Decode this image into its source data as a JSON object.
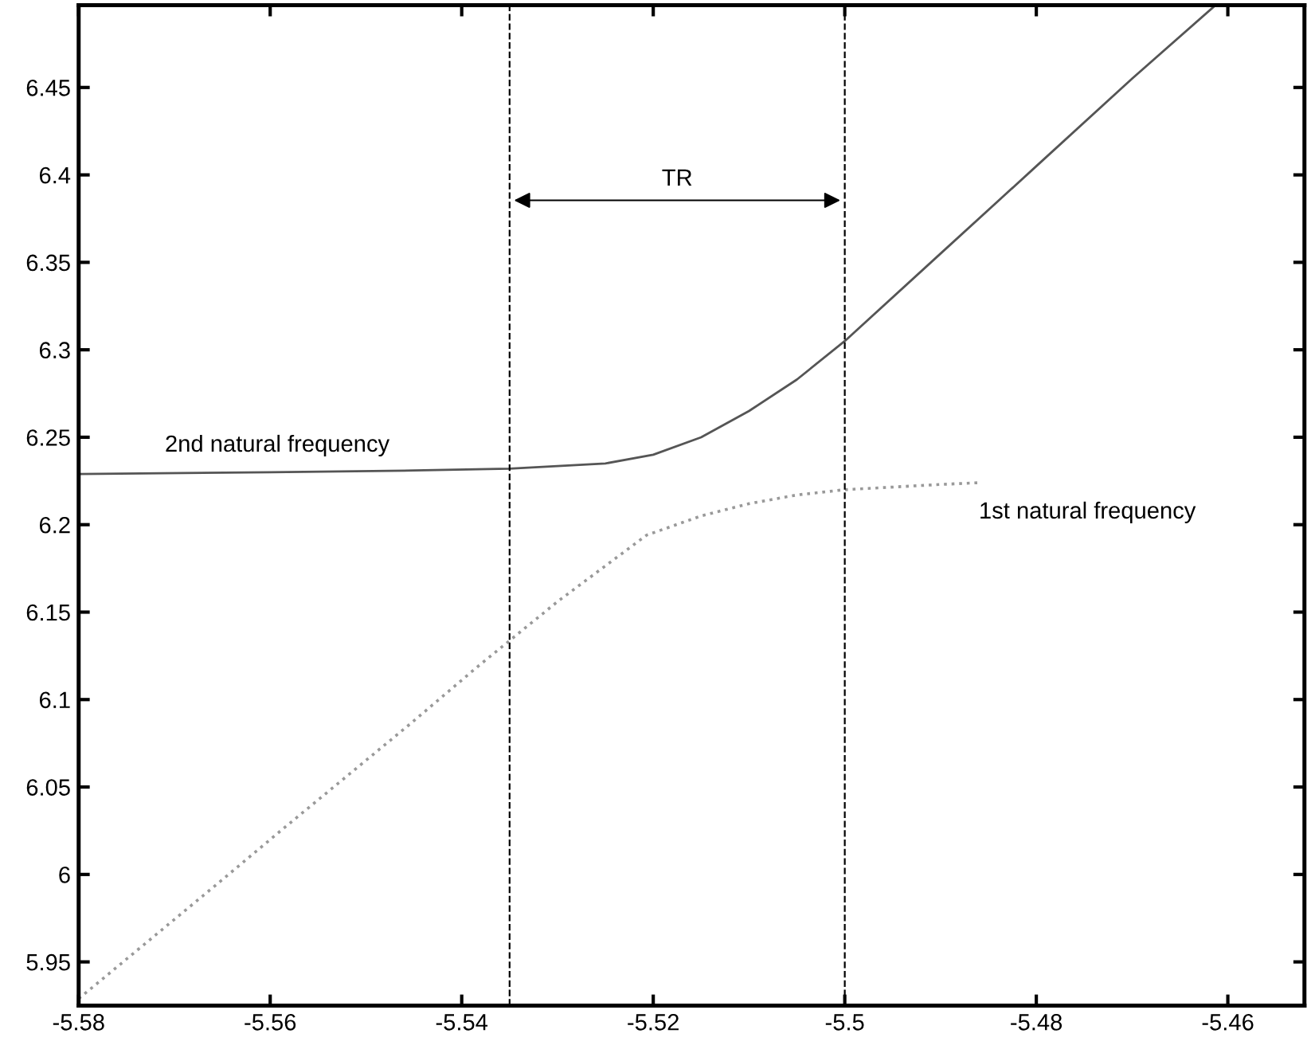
{
  "chart_data": {
    "type": "line",
    "xlim": [
      -5.58,
      -5.452
    ],
    "ylim": [
      5.925,
      6.497
    ],
    "xticks": [
      -5.58,
      -5.56,
      -5.54,
      -5.52,
      -5.5,
      -5.48,
      -5.46
    ],
    "yticks": [
      5.95,
      6,
      6.05,
      6.1,
      6.15,
      6.2,
      6.25,
      6.3,
      6.35,
      6.4,
      6.45
    ],
    "grid": false,
    "legend": false,
    "series": [
      {
        "name": "2nd natural frequency",
        "color": "#555555",
        "line_style": "solid",
        "x": [
          -5.58,
          -5.56,
          -5.545,
          -5.535,
          -5.525,
          -5.52,
          -5.515,
          -5.51,
          -5.505,
          -5.5,
          -5.49,
          -5.48,
          -5.47,
          -5.4613
        ],
        "values": [
          6.229,
          6.23,
          6.231,
          6.232,
          6.235,
          6.24,
          6.25,
          6.265,
          6.283,
          6.305,
          6.355,
          6.405,
          6.455,
          6.497
        ]
      },
      {
        "name": "1st natural frequency",
        "color": "#999999",
        "line_style": "dotted",
        "x": [
          -5.58,
          -5.578,
          -5.565,
          -5.5589,
          -5.5454,
          -5.5383,
          -5.53,
          -5.5207,
          -5.515,
          -5.51,
          -5.505,
          -5.5,
          -5.49,
          -5.486
        ],
        "values": [
          5.929,
          5.938,
          5.997,
          6.025,
          6.086,
          6.119,
          6.156,
          6.194,
          6.205,
          6.212,
          6.217,
          6.22,
          6.223,
          6.224
        ]
      }
    ],
    "ref_lines": [
      {
        "axis": "x",
        "value": -5.535,
        "color": "#000000",
        "line_style": "dashed"
      },
      {
        "axis": "x",
        "value": -5.5,
        "color": "#000000",
        "line_style": "dashed"
      }
    ],
    "annotations": [
      "TR"
    ]
  }
}
